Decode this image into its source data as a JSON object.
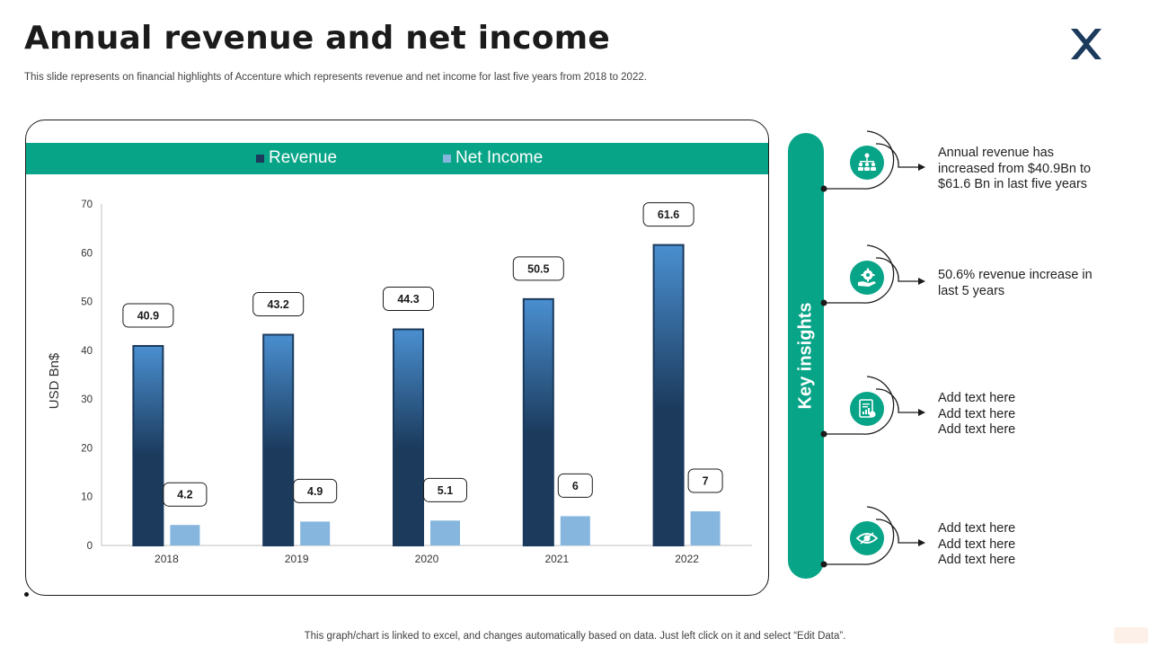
{
  "slide": {
    "title": "Annual revenue and net income",
    "subtitle": "This slide represents on financial highlights of Accenture which represents revenue and net income for last five years from 2018 to 2022.",
    "footer": "This graph/chart is linked to excel,  and changes automatically based on data. Just left click on it and select “Edit Data”."
  },
  "colors": {
    "accent": "#08a487",
    "revenue_dark": "#1b3a5c",
    "revenue_light": "#4a8fd0",
    "net_income": "#86b6de",
    "logo": "#1b3a5c"
  },
  "logo": {
    "icon": "x-mark-icon"
  },
  "chart_data": {
    "type": "bar",
    "categories": [
      "2018",
      "2019",
      "2020",
      "2021",
      "2022"
    ],
    "series": [
      {
        "name": "Revenue",
        "values": [
          40.9,
          43.2,
          44.3,
          50.5,
          61.6
        ]
      },
      {
        "name": "Net Income",
        "values": [
          4.2,
          4.9,
          5.1,
          6,
          7
        ]
      }
    ],
    "ylabel": "USD Bn$",
    "ylim": [
      0,
      70
    ],
    "yticks": [
      0,
      10,
      20,
      30,
      40,
      50,
      60,
      70
    ],
    "legend": "top",
    "grid": false
  },
  "insights": {
    "label": "Key insights",
    "items": [
      {
        "icon": "hierarchy-icon",
        "lines": [
          "Annual revenue has",
          "increased from $40.9Bn to",
          "$61.6 Bn in last five years"
        ]
      },
      {
        "icon": "gear-hand-icon",
        "lines": [
          "50.6% revenue increase in",
          "last 5 years"
        ]
      },
      {
        "icon": "report-icon",
        "lines": [
          "Add text here",
          "Add text here",
          "Add text here"
        ]
      },
      {
        "icon": "eye-icon",
        "lines": [
          "Add text here",
          "Add text here",
          "Add text here"
        ]
      }
    ]
  }
}
